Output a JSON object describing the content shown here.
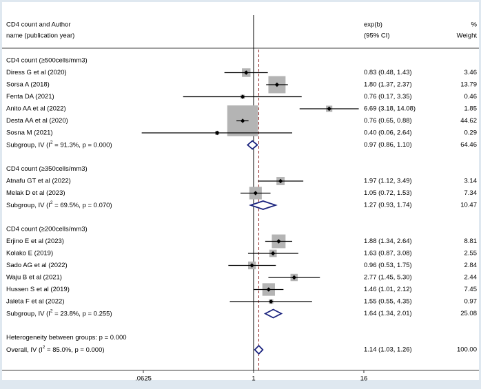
{
  "chart_data": {
    "type": "forest",
    "header": {
      "col1_line1": "CD4 count and Author",
      "col1_line2": "name (publication year)",
      "col2_line1": "exp(b)",
      "col2_line2": "(95% CI)",
      "col3_line1": "%",
      "col3_line2": "Weight"
    },
    "x_scale": "log2",
    "xlim": [
      0.0625,
      16
    ],
    "ticks": [
      {
        "value": 0.0625,
        "label": ".0625"
      },
      {
        "value": 1,
        "label": "1"
      },
      {
        "value": 16,
        "label": "16"
      }
    ],
    "null_value": 1,
    "overall_estimate": 1.14,
    "groups": [
      {
        "title": "CD4 count (≥500cells/mm3)",
        "studies": [
          {
            "label": "Diress G et al (2020)",
            "est": 0.83,
            "lo": 0.48,
            "hi": 1.43,
            "ci_text": "0.83 (0.48, 1.43)",
            "weight": "3.46"
          },
          {
            "label": "Sorsa A  (2018)",
            "est": 1.8,
            "lo": 1.37,
            "hi": 2.37,
            "ci_text": "1.80 (1.37, 2.37)",
            "weight": "13.79"
          },
          {
            "label": "Fenta DA (2021)",
            "est": 0.76,
            "lo": 0.17,
            "hi": 3.35,
            "ci_text": "0.76 (0.17, 3.35)",
            "weight": "0.46"
          },
          {
            "label": "Anito AA et al (2022)",
            "est": 6.69,
            "lo": 3.18,
            "hi": 14.08,
            "ci_text": "6.69 (3.18, 14.08)",
            "weight": "1.85"
          },
          {
            "label": "Desta AA et al (2020)",
            "est": 0.76,
            "lo": 0.65,
            "hi": 0.88,
            "ci_text": "0.76 (0.65, 0.88)",
            "weight": "44.62"
          },
          {
            "label": "Sosna M (2021)",
            "est": 0.4,
            "lo": 0.06,
            "hi": 2.64,
            "ci_text": "0.40 (0.06, 2.64)",
            "weight": "0.29"
          }
        ],
        "subgroup": {
          "label": "Subgroup, IV (I² = 91.3%, p = 0.000)",
          "est": 0.97,
          "lo": 0.86,
          "hi": 1.1,
          "ci_text": "0.97 (0.86, 1.10)",
          "weight": "64.46"
        }
      },
      {
        "title": "CD4 count (≥350cells/mm3)",
        "studies": [
          {
            "label": "Atnafu GT et al (2022)",
            "est": 1.97,
            "lo": 1.12,
            "hi": 3.49,
            "ci_text": "1.97 (1.12, 3.49)",
            "weight": "3.14"
          },
          {
            "label": "Melak D et al (2023)",
            "est": 1.05,
            "lo": 0.72,
            "hi": 1.53,
            "ci_text": "1.05 (0.72, 1.53)",
            "weight": "7.34"
          }
        ],
        "subgroup": {
          "label": "Subgroup, IV (I² = 69.5%, p = 0.070)",
          "est": 1.27,
          "lo": 0.93,
          "hi": 1.74,
          "ci_text": "1.27 (0.93, 1.74)",
          "weight": "10.47"
        }
      },
      {
        "title": "CD4 count (≥200cells/mm3)",
        "studies": [
          {
            "label": "Erjino E et al (2023)",
            "est": 1.88,
            "lo": 1.34,
            "hi": 2.64,
            "ci_text": "1.88 (1.34, 2.64)",
            "weight": "8.81"
          },
          {
            "label": "Kolako E (2019)",
            "est": 1.63,
            "lo": 0.87,
            "hi": 3.08,
            "ci_text": "1.63 (0.87, 3.08)",
            "weight": "2.55"
          },
          {
            "label": "Sado AG et al (2022)",
            "est": 0.96,
            "lo": 0.53,
            "hi": 1.75,
            "ci_text": "0.96 (0.53, 1.75)",
            "weight": "2.84"
          },
          {
            "label": "Waju B et al (2021)",
            "est": 2.77,
            "lo": 1.45,
            "hi": 5.3,
            "ci_text": "2.77 (1.45, 5.30)",
            "weight": "2.44"
          },
          {
            "label": "Hussen S et al (2019)",
            "est": 1.46,
            "lo": 1.01,
            "hi": 2.12,
            "ci_text": "1.46 (1.01, 2.12)",
            "weight": "7.45"
          },
          {
            "label": "Jaleta F et al (2022)",
            "est": 1.55,
            "lo": 0.55,
            "hi": 4.35,
            "ci_text": "1.55 (0.55, 4.35)",
            "weight": "0.97"
          }
        ],
        "subgroup": {
          "label": "Subgroup, IV (I² = 23.8%, p = 0.255)",
          "est": 1.64,
          "lo": 1.34,
          "hi": 2.01,
          "ci_text": "1.64 (1.34, 2.01)",
          "weight": "25.08"
        }
      }
    ],
    "heterogeneity_text": "Heterogeneity between groups: p = 0.000",
    "overall": {
      "label": "Overall, IV (I² = 85.0%, p = 0.000)",
      "est": 1.14,
      "lo": 1.03,
      "hi": 1.26,
      "ci_text": "1.14 (1.03, 1.26)",
      "weight": "100.00"
    },
    "colors": {
      "background": "#dfe8f0",
      "panel": "#ffffff",
      "box": "#b4b4b4",
      "diamond": "#1a237e",
      "overall_line": "#8b1a1a",
      "ink": "#000000"
    }
  }
}
